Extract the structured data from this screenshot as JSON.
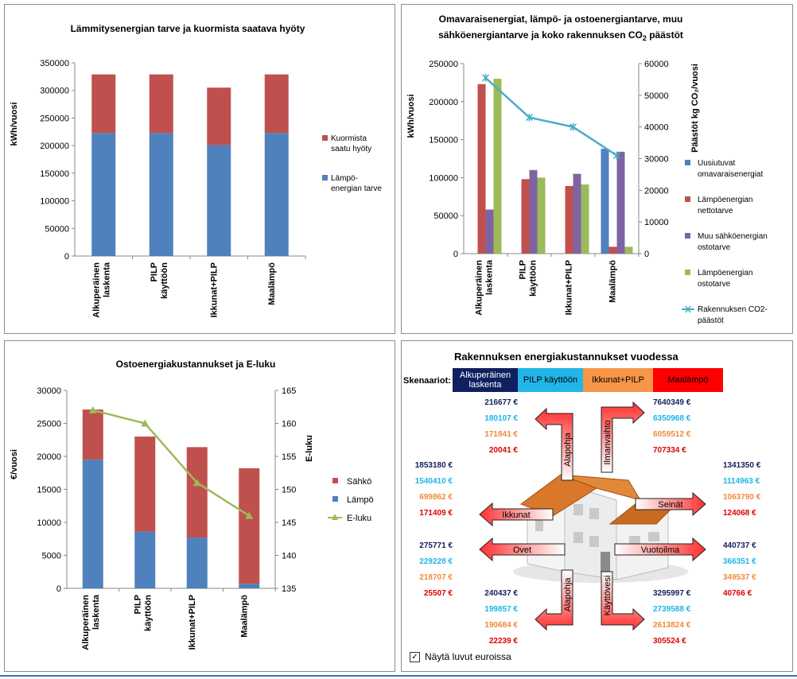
{
  "chart_data": [
    {
      "type": "bar",
      "stacked": true,
      "title": "Lämmitysenergian tarve ja kuormista saatava hyöty",
      "ylabel": "kWh/vuosi",
      "categories": [
        "Alkuperäinen laskenta",
        "PILP käyttöön",
        "Ikkunat+PILP",
        "Maalämpö"
      ],
      "ylim": [
        0,
        350000
      ],
      "yticks": [
        "0",
        "50000",
        "100000",
        "150000",
        "200000",
        "250000",
        "300000",
        "350000"
      ],
      "series": [
        {
          "name": "Lämpö-energian tarve",
          "color": "#4f81bd",
          "values": [
            223000,
            223000,
            201000,
            223000
          ]
        },
        {
          "name": "Kuormista saatu hyöty",
          "color": "#c0504d",
          "values": [
            106000,
            106000,
            104000,
            106000
          ]
        }
      ],
      "legend": "right"
    },
    {
      "type": "bar+line",
      "title_line1": "Omavaraisenergiat,  lämpö- ja ostoenergiantarve, muu",
      "title_line2": "sähköenergiantarve ja koko rakennuksen CO",
      "title_sub": "2",
      "title_end": " päästöt",
      "ylabel": "kWh/vuosi",
      "y2label": "Päästöt kg CO₂/vuosi",
      "categories": [
        "Alkuperäinen laskenta",
        "PILP käyttöön",
        "Ikkunat+PILP",
        "Maalämpö"
      ],
      "ylim": [
        0,
        250000
      ],
      "y2lim": [
        0,
        60000
      ],
      "yticks": [
        "0",
        "50000",
        "100000",
        "150000",
        "200000",
        "250000"
      ],
      "y2ticks": [
        "0",
        "10000",
        "20000",
        "30000",
        "40000",
        "50000",
        "60000"
      ],
      "series": [
        {
          "name": "Uusiutuvat omavaraisenergiat",
          "color": "#4f81bd",
          "values": [
            0,
            0,
            0,
            138000
          ]
        },
        {
          "name": "Lämpöenergian nettotarve",
          "color": "#c0504d",
          "values": [
            223000,
            98000,
            89000,
            9000
          ]
        },
        {
          "name": "Muu sähköenergian ostotarve",
          "color": "#8064a2",
          "values": [
            58000,
            110000,
            105000,
            134000
          ]
        },
        {
          "name": "Lämpöenergian ostotarve",
          "color": "#9bbb59",
          "values": [
            230000,
            100000,
            91000,
            9000
          ]
        }
      ],
      "line": {
        "name": "Rakennuksen CO2-päästöt",
        "color": "#4bacc6",
        "values": [
          55500,
          43000,
          40000,
          31000
        ]
      },
      "legend_labels": [
        [
          "Uusiutuvat",
          "omavaraisenergiat"
        ],
        [
          "Lämpöenergian",
          "nettotarve"
        ],
        [
          "Muu sähköenergian",
          "ostotarve"
        ],
        [
          "Lämpöenergian",
          "ostotarve"
        ],
        [
          "Rakennuksen CO2-",
          "päästöt"
        ]
      ]
    },
    {
      "type": "bar+line",
      "stacked": true,
      "title": "Ostoenergiakustannukset ja E-luku",
      "ylabel": "€/vuosi",
      "y2label": "E-luku",
      "categories": [
        "Alkuperäinen laskenta",
        "PILP käyttöön",
        "Ikkunat+PILP",
        "Maalämpö"
      ],
      "ylim": [
        0,
        30000
      ],
      "y2lim": [
        135,
        165
      ],
      "yticks": [
        "0",
        "5000",
        "10000",
        "15000",
        "20000",
        "25000",
        "30000"
      ],
      "y2ticks": [
        "135",
        "140",
        "145",
        "150",
        "155",
        "160",
        "165"
      ],
      "series": [
        {
          "name": "Lämpö",
          "color": "#4f81bd",
          "values": [
            19500,
            8600,
            7700,
            700
          ]
        },
        {
          "name": "Sähkö",
          "color": "#c0504d",
          "values": [
            7600,
            14400,
            13700,
            17500
          ]
        }
      ],
      "line": {
        "name": "E-luku",
        "color": "#9bbb59",
        "values": [
          162,
          160,
          151,
          146
        ]
      }
    }
  ],
  "costs": {
    "title": "Rakennuksen energiakustannukset vuodessa",
    "scenario_label": "Skenaariot:",
    "scenarios": [
      {
        "name": "Alkuperäinen laskenta",
        "bg": "#0f2060",
        "fg": "#ffffff"
      },
      {
        "name": "PILP käyttöön",
        "bg": "#22b6e8",
        "fg": "#000000"
      },
      {
        "name": "Ikkunat+PILP",
        "bg": "#f79646",
        "fg": "#000000"
      },
      {
        "name": "Maalämpö",
        "bg": "#ff0000",
        "fg": "#000000"
      }
    ],
    "arrows": {
      "alapohja_top": "Alapohja",
      "ilmanvaihto": "Ilmanvaihto",
      "ikkunat": "Ikkunat",
      "seinat": "Seinät",
      "ovet": "Ovet",
      "vuotoilma": "Vuotoilma",
      "alapohja_bottom": "Alapohja",
      "kayttovesi": "Käyttövesi"
    },
    "groups": {
      "g_top_left": [
        "216677 €",
        "180107 €",
        "171841 €",
        "20041 €"
      ],
      "g_top_right": [
        "7640349 €",
        "6350968 €",
        "6059512 €",
        "707334 €"
      ],
      "g_mid_left": [
        "1853180 €",
        "1540410 €",
        "699862 €",
        "171409 €"
      ],
      "g_mid_right": [
        "1341350 €",
        "1114963 €",
        "1063790 €",
        "124068 €"
      ],
      "g_low_left": [
        "275771 €",
        "229228 €",
        "218707 €",
        "25507 €"
      ],
      "g_low_right": [
        "440737 €",
        "366351 €",
        "349537 €",
        "40766 €"
      ],
      "g_bot_left": [
        "240437 €",
        "199857 €",
        "190684 €",
        "22239 €"
      ],
      "g_bot_right": [
        "3295997 €",
        "2739588 €",
        "2613824 €",
        "305524 €"
      ]
    },
    "checkbox_label": "Näytä luvut euroissa",
    "checkbox_mark": "✓"
  }
}
